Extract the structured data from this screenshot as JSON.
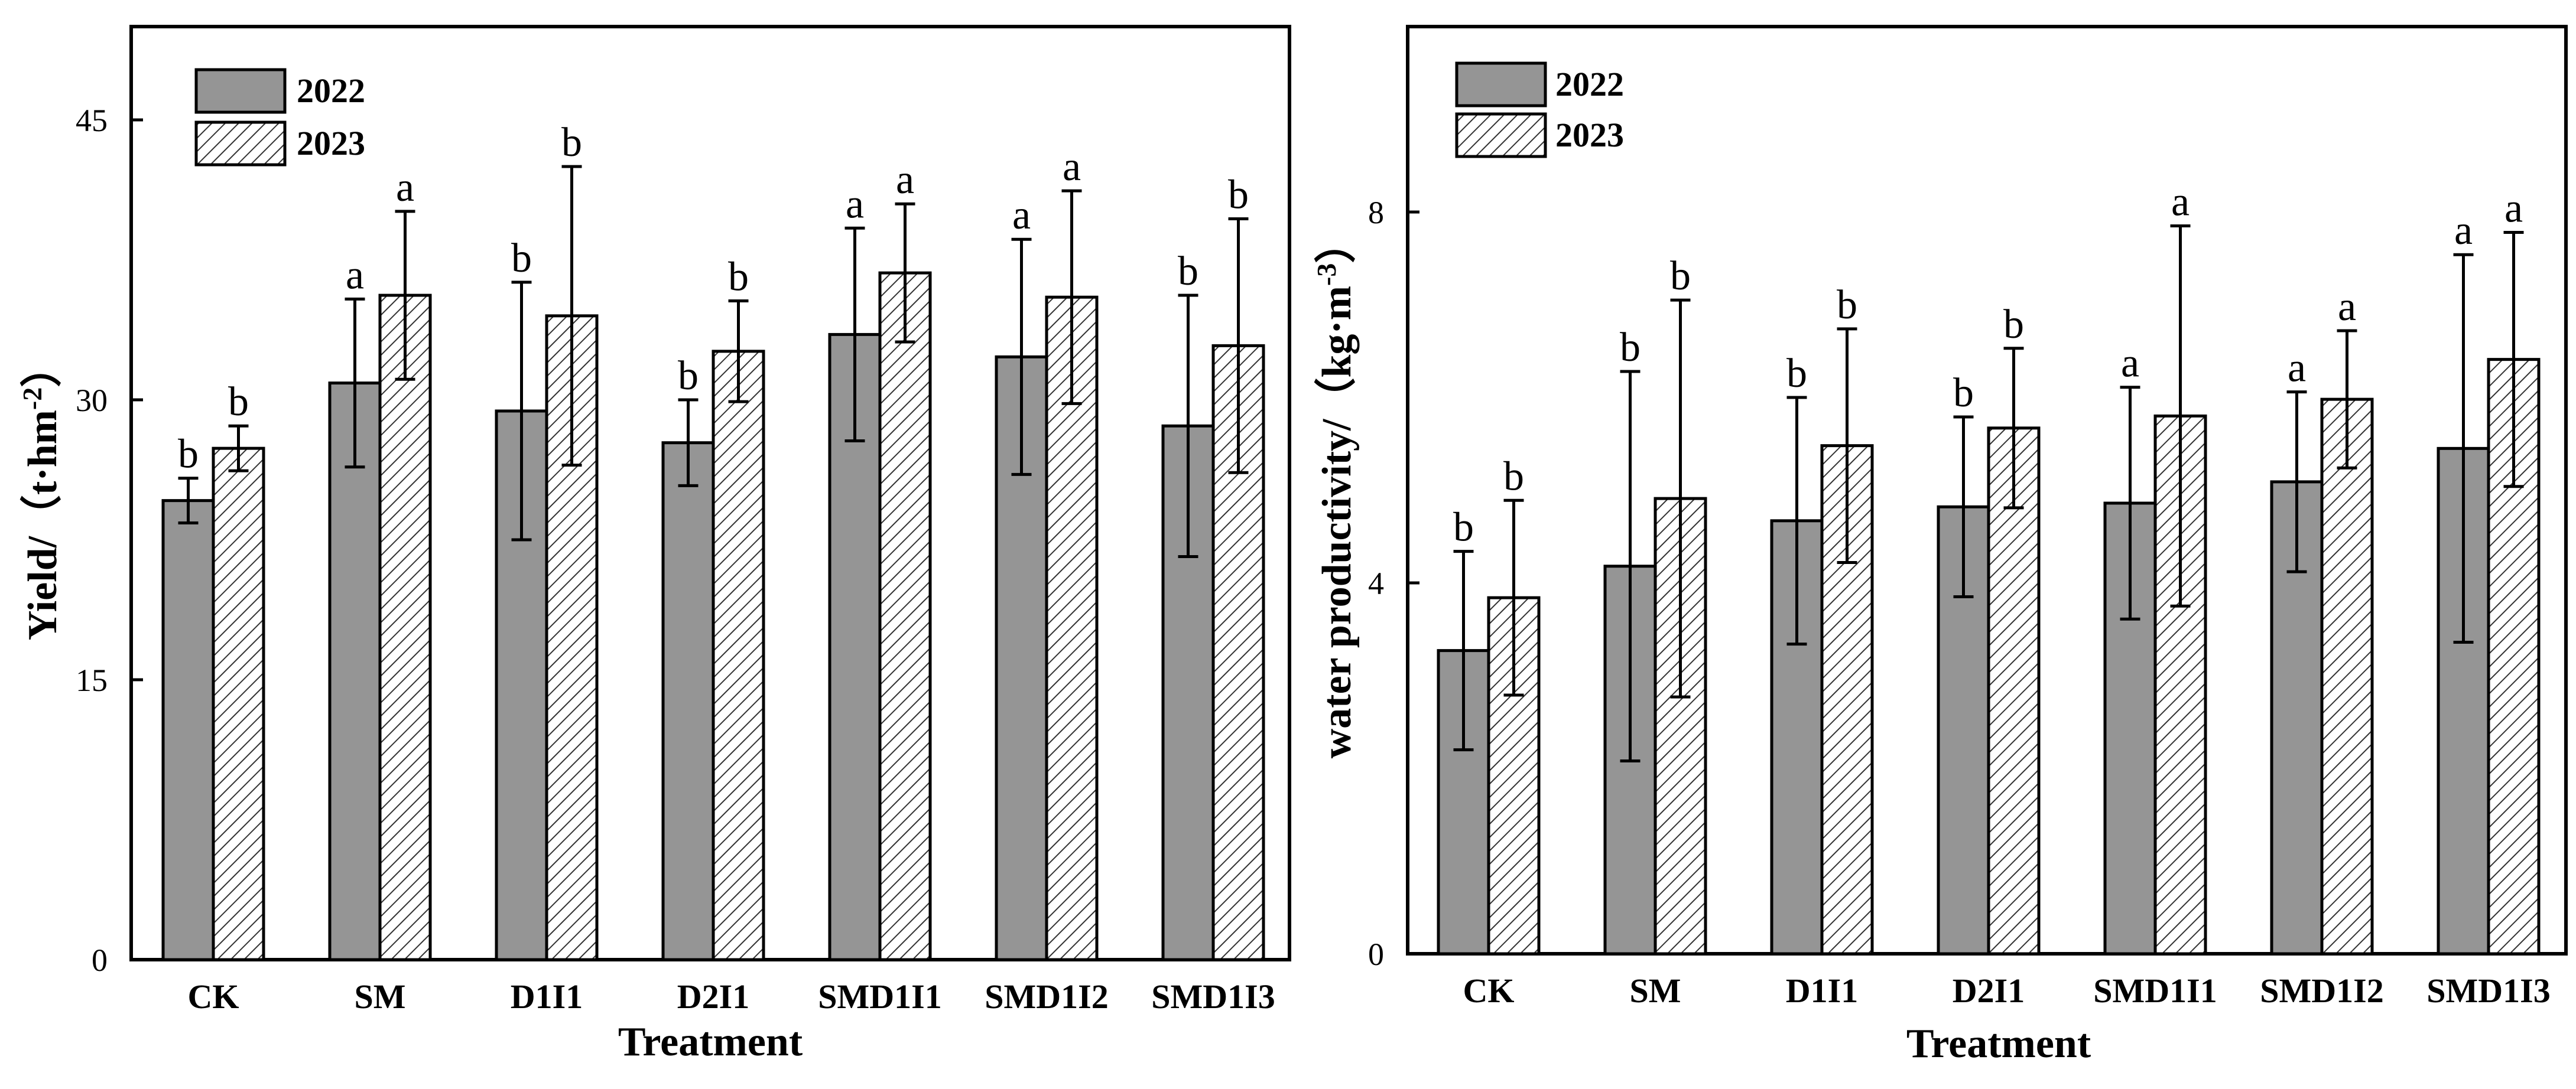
{
  "colors": {
    "bar_2022": "#959595",
    "bar_2023_bg": "#ffffff",
    "hatch": "#333333",
    "axis": "#000000"
  },
  "chart_data": [
    {
      "type": "bar",
      "categories": [
        "CK",
        "SM",
        "D1I1",
        "D2I1",
        "SMD1I1",
        "SMD1I2",
        "SMD1I3"
      ],
      "xlabel": "Treatment",
      "ylabel": "Yield/（t·hm",
      "ylabel_sup": "-2",
      "ylabel_tail": "）",
      "ylim": [
        0,
        50
      ],
      "yticks": [
        0,
        15,
        30,
        45
      ],
      "ytick_labels": [
        "0",
        "15",
        "30",
        "45"
      ],
      "legend": [
        "2022",
        "2023"
      ],
      "legend_position": "top-left",
      "series": [
        {
          "name": "2022",
          "values": [
            24.6,
            30.9,
            29.4,
            27.7,
            33.5,
            32.3,
            28.6
          ],
          "errors": [
            1.2,
            4.5,
            6.9,
            2.3,
            5.7,
            6.3,
            7.0
          ],
          "letters": [
            "b",
            "a",
            "b",
            "b",
            "a",
            "a",
            "b"
          ]
        },
        {
          "name": "2023",
          "values": [
            27.4,
            35.6,
            34.5,
            32.6,
            36.8,
            35.5,
            32.9
          ],
          "errors": [
            1.2,
            4.5,
            8.0,
            2.7,
            3.7,
            5.7,
            6.8
          ],
          "letters": [
            "b",
            "a",
            "b",
            "b",
            "a",
            "a",
            "b"
          ]
        }
      ]
    },
    {
      "type": "bar",
      "categories": [
        "CK",
        "SM",
        "D1I1",
        "D2I1",
        "SMD1I1",
        "SMD1I2",
        "SMD1I3"
      ],
      "xlabel": "Treatment",
      "ylabel": "water productivity/（kg·m",
      "ylabel_sup": "-3",
      "ylabel_tail": "）",
      "ylim": [
        0,
        10
      ],
      "yticks": [
        0,
        4,
        8
      ],
      "ytick_labels": [
        "0",
        "4",
        "8"
      ],
      "legend": [
        "2022",
        "2023"
      ],
      "legend_position": "top-left",
      "series": [
        {
          "name": "2022",
          "values": [
            3.27,
            4.18,
            4.67,
            4.82,
            4.86,
            5.09,
            5.45
          ],
          "errors": [
            1.07,
            2.1,
            1.33,
            0.97,
            1.25,
            0.97,
            2.09
          ],
          "letters": [
            "b",
            "b",
            "b",
            "b",
            "a",
            "a",
            "a"
          ]
        },
        {
          "name": "2023",
          "values": [
            3.84,
            4.91,
            5.48,
            5.67,
            5.8,
            5.98,
            6.41
          ],
          "errors": [
            1.05,
            2.14,
            1.26,
            0.86,
            2.05,
            0.74,
            1.37
          ],
          "letters": [
            "b",
            "b",
            "b",
            "b",
            "a",
            "a",
            "a"
          ]
        }
      ]
    }
  ]
}
